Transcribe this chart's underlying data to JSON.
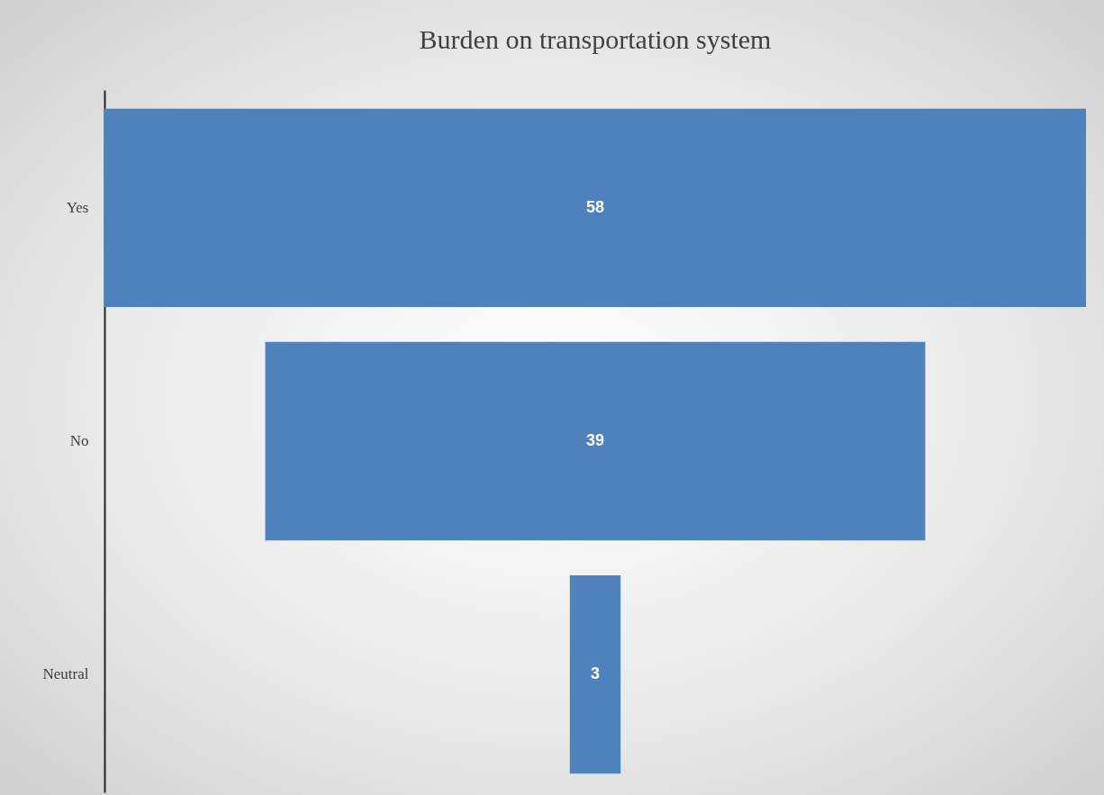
{
  "chart_data": {
    "type": "other",
    "title": "Burden on transportation system",
    "categories": [
      "Yes",
      "No",
      "Neutral"
    ],
    "values": [
      58,
      39,
      3
    ],
    "color": "#4f81bd",
    "data_labels": true
  }
}
